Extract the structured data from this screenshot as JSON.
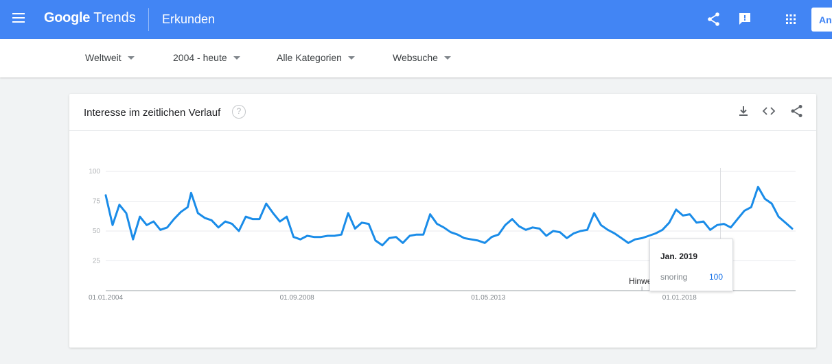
{
  "header": {
    "logo_text_google": "Google",
    "logo_text_trends": "Trends",
    "page_title": "Erkunden",
    "signin_label": "Anmelden",
    "icons": [
      "menu-icon",
      "share-icon",
      "feedback-icon",
      "apps-icon"
    ],
    "bar_color": "#4285f4"
  },
  "filters": {
    "region": "Weltweit",
    "time_range": "2004 - heute",
    "category": "Alle Kategorien",
    "search_type": "Websuche"
  },
  "card": {
    "title": "Interesse im zeitlichen Verlauf",
    "help_glyph": "?",
    "icons": [
      "download-icon",
      "embed-icon",
      "share-icon"
    ]
  },
  "tooltip": {
    "date": "Jan. 2019",
    "series": "snoring",
    "value": "100"
  },
  "chart_data": {
    "type": "line",
    "title": "",
    "xlabel": "",
    "ylabel": "",
    "x_range": [
      "2004-01",
      "2020-11"
    ],
    "ylim": [
      0,
      100
    ],
    "y_ticks": [
      "25",
      "50",
      "75",
      "100"
    ],
    "x_tick_labels": [
      "01.01.2004",
      "01.09.2008",
      "01.05.2013",
      "01.01.2018"
    ],
    "grid": true,
    "line_color": "#1a8ce8",
    "note_label": "Hinweis",
    "note_month": "2017-02",
    "highlight_month": "2019-01",
    "series": [
      {
        "name": "snoring",
        "points": [
          [
            "2004-01",
            80
          ],
          [
            "2004-03",
            55
          ],
          [
            "2004-05",
            72
          ],
          [
            "2004-07",
            65
          ],
          [
            "2004-09",
            43
          ],
          [
            "2004-11",
            62
          ],
          [
            "2005-01",
            55
          ],
          [
            "2005-03",
            58
          ],
          [
            "2005-05",
            51
          ],
          [
            "2005-07",
            53
          ],
          [
            "2005-09",
            60
          ],
          [
            "2005-11",
            66
          ],
          [
            "2006-01",
            70
          ],
          [
            "2006-02",
            82
          ],
          [
            "2006-04",
            65
          ],
          [
            "2006-06",
            61
          ],
          [
            "2006-08",
            59
          ],
          [
            "2006-10",
            53
          ],
          [
            "2006-12",
            58
          ],
          [
            "2007-02",
            56
          ],
          [
            "2007-04",
            50
          ],
          [
            "2007-06",
            62
          ],
          [
            "2007-08",
            60
          ],
          [
            "2007-10",
            60
          ],
          [
            "2007-12",
            73
          ],
          [
            "2008-02",
            65
          ],
          [
            "2008-04",
            58
          ],
          [
            "2008-06",
            62
          ],
          [
            "2008-08",
            45
          ],
          [
            "2008-10",
            43
          ],
          [
            "2008-12",
            46
          ],
          [
            "2009-02",
            45
          ],
          [
            "2009-04",
            45
          ],
          [
            "2009-06",
            46
          ],
          [
            "2009-08",
            46
          ],
          [
            "2009-10",
            47
          ],
          [
            "2009-12",
            65
          ],
          [
            "2010-02",
            52
          ],
          [
            "2010-04",
            57
          ],
          [
            "2010-06",
            56
          ],
          [
            "2010-08",
            42
          ],
          [
            "2010-10",
            38
          ],
          [
            "2010-12",
            44
          ],
          [
            "2011-02",
            45
          ],
          [
            "2011-04",
            40
          ],
          [
            "2011-06",
            46
          ],
          [
            "2011-08",
            47
          ],
          [
            "2011-10",
            47
          ],
          [
            "2011-12",
            64
          ],
          [
            "2012-02",
            56
          ],
          [
            "2012-04",
            53
          ],
          [
            "2012-06",
            49
          ],
          [
            "2012-08",
            47
          ],
          [
            "2012-10",
            44
          ],
          [
            "2012-12",
            43
          ],
          [
            "2013-02",
            42
          ],
          [
            "2013-04",
            40
          ],
          [
            "2013-06",
            45
          ],
          [
            "2013-08",
            47
          ],
          [
            "2013-10",
            55
          ],
          [
            "2013-12",
            60
          ],
          [
            "2014-02",
            54
          ],
          [
            "2014-04",
            51
          ],
          [
            "2014-06",
            53
          ],
          [
            "2014-08",
            52
          ],
          [
            "2014-10",
            46
          ],
          [
            "2014-12",
            50
          ],
          [
            "2015-02",
            49
          ],
          [
            "2015-04",
            44
          ],
          [
            "2015-06",
            48
          ],
          [
            "2015-08",
            50
          ],
          [
            "2015-10",
            51
          ],
          [
            "2015-12",
            65
          ],
          [
            "2016-02",
            55
          ],
          [
            "2016-04",
            51
          ],
          [
            "2016-06",
            48
          ],
          [
            "2016-08",
            44
          ],
          [
            "2016-10",
            40
          ],
          [
            "2016-12",
            43
          ],
          [
            "2017-02",
            44
          ],
          [
            "2017-04",
            46
          ],
          [
            "2017-06",
            48
          ],
          [
            "2017-08",
            51
          ],
          [
            "2017-10",
            57
          ],
          [
            "2017-12",
            68
          ],
          [
            "2018-02",
            63
          ],
          [
            "2018-04",
            64
          ],
          [
            "2018-06",
            57
          ],
          [
            "2018-08",
            58
          ],
          [
            "2018-10",
            51
          ],
          [
            "2018-12",
            55
          ],
          [
            "2019-02",
            56
          ],
          [
            "2019-04",
            53
          ],
          [
            "2019-06",
            60
          ],
          [
            "2019-08",
            67
          ],
          [
            "2019-10",
            70
          ],
          [
            "2019-12",
            87
          ],
          [
            "2020-02",
            77
          ],
          [
            "2020-04",
            73
          ],
          [
            "2020-06",
            62
          ],
          [
            "2020-08",
            57
          ],
          [
            "2020-10",
            52
          ]
        ]
      }
    ]
  }
}
